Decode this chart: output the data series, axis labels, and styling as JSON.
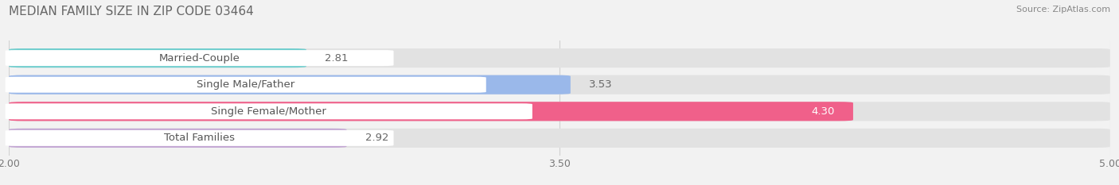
{
  "title": "MEDIAN FAMILY SIZE IN ZIP CODE 03464",
  "source": "Source: ZipAtlas.com",
  "categories": [
    "Married-Couple",
    "Single Male/Father",
    "Single Female/Mother",
    "Total Families"
  ],
  "values": [
    2.81,
    3.53,
    4.3,
    2.92
  ],
  "bar_colors": [
    "#72cece",
    "#9ab8ea",
    "#f0608a",
    "#c4a8d4"
  ],
  "xlim": [
    2.0,
    5.0
  ],
  "xticks": [
    2.0,
    3.5,
    5.0
  ],
  "xtick_labels": [
    "2.00",
    "3.50",
    "5.00"
  ],
  "bar_height": 0.72,
  "bg_color": "#f2f2f2",
  "bar_bg_color": "#e2e2e2",
  "label_fontsize": 9.5,
  "title_fontsize": 11,
  "value_fontsize": 9.5,
  "value_color_inside": "#ffffff",
  "value_color_outside": "#666666",
  "label_text_color": "#555555",
  "grid_color": "#d0d0d0",
  "source_color": "#888888"
}
